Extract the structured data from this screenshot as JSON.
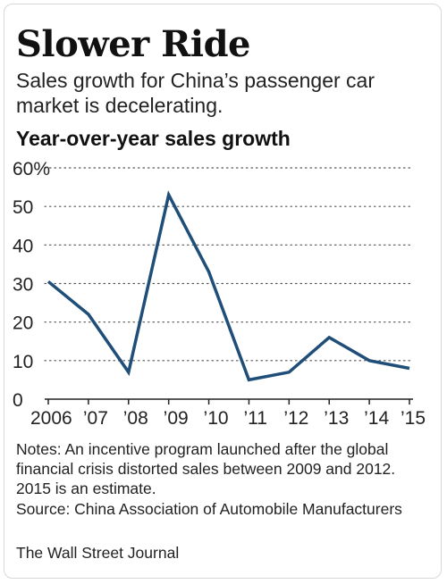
{
  "headline": "Slower Ride",
  "subhead": "Sales growth for China’s passenger car market is decelerating.",
  "chart_title": "Year-over-year sales growth",
  "notes": "Notes: An incentive program launched after the global financial crisis distorted sales between 2009 and 2012. 2015 is an estimate.",
  "source": "Source: China Association of Automobile Manufacturers",
  "credit": "The Wall Street Journal",
  "chart_data": {
    "type": "line",
    "title": "Year-over-year sales growth",
    "xlabel": "",
    "ylabel": "",
    "x": [
      2006,
      2007,
      2008,
      2009,
      2010,
      2011,
      2012,
      2013,
      2014,
      2015
    ],
    "x_tick_labels": [
      "2006",
      "’07",
      "’08",
      "’09",
      "’10",
      "’11",
      "’12",
      "’13",
      "’14",
      "’15"
    ],
    "y_ticks": [
      0,
      10,
      20,
      30,
      40,
      50,
      60
    ],
    "y_tick_labels": [
      "0",
      "10",
      "20",
      "30",
      "40",
      "50",
      "60%"
    ],
    "ylim": [
      0,
      60
    ],
    "grid": "dotted horizontal",
    "series": [
      {
        "values": [
          30.5,
          22,
          7,
          53,
          33,
          5,
          7,
          16,
          10,
          8
        ],
        "color": "#1f4e79"
      }
    ]
  }
}
